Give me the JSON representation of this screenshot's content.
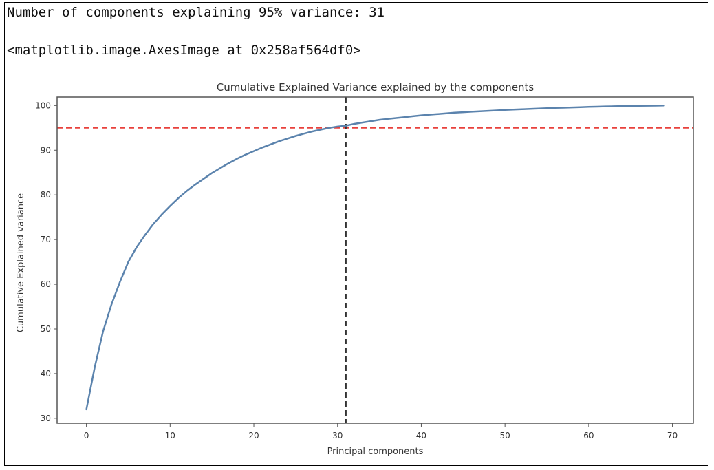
{
  "output": {
    "line1": "Number of components explaining 95% variance: 31",
    "line2": "<matplotlib.image.AxesImage at 0x258af564df0>"
  },
  "chart_data": {
    "type": "line",
    "title": "Cumulative Explained Variance explained by the components",
    "xlabel": "Principal components",
    "ylabel": "Cumulative Explained variance",
    "xlim": [
      -3.5,
      72.5
    ],
    "ylim": [
      28.9,
      101.9
    ],
    "xticks": [
      0,
      10,
      20,
      30,
      40,
      50,
      60,
      70
    ],
    "yticks": [
      30,
      40,
      50,
      60,
      70,
      80,
      90,
      100
    ],
    "grid": false,
    "series": [
      {
        "color": "#5b83ad",
        "x": [
          0,
          1,
          2,
          3,
          4,
          5,
          6,
          7,
          8,
          9,
          10,
          11,
          12,
          13,
          14,
          15,
          16,
          17,
          18,
          19,
          20,
          21,
          22,
          23,
          24,
          25,
          26,
          27,
          28,
          29,
          30,
          31,
          32,
          33,
          34,
          35,
          36,
          37,
          38,
          39,
          40,
          41,
          42,
          43,
          44,
          45,
          46,
          47,
          48,
          49,
          50,
          51,
          52,
          53,
          54,
          55,
          56,
          57,
          58,
          59,
          60,
          61,
          62,
          63,
          64,
          65,
          66,
          67,
          68,
          69
        ],
        "y": [
          32.0,
          41.5,
          49.5,
          55.5,
          60.5,
          65.0,
          68.3,
          71.0,
          73.5,
          75.6,
          77.5,
          79.3,
          80.9,
          82.3,
          83.6,
          84.9,
          86.0,
          87.1,
          88.1,
          89.0,
          89.8,
          90.6,
          91.3,
          92.0,
          92.6,
          93.2,
          93.7,
          94.2,
          94.6,
          95.0,
          95.3,
          95.5,
          95.9,
          96.2,
          96.5,
          96.8,
          97.0,
          97.2,
          97.4,
          97.6,
          97.8,
          97.95,
          98.1,
          98.25,
          98.4,
          98.5,
          98.6,
          98.7,
          98.8,
          98.9,
          99.0,
          99.08,
          99.16,
          99.24,
          99.32,
          99.4,
          99.46,
          99.52,
          99.58,
          99.64,
          99.7,
          99.75,
          99.8,
          99.84,
          99.88,
          99.91,
          99.94,
          99.96,
          99.98,
          100.0
        ]
      }
    ],
    "reference_lines": [
      {
        "orientation": "horizontal",
        "value": 95,
        "color": "#e8413c",
        "style": "dashed"
      },
      {
        "orientation": "vertical",
        "value": 31,
        "color": "#333333",
        "style": "dashed"
      }
    ]
  }
}
